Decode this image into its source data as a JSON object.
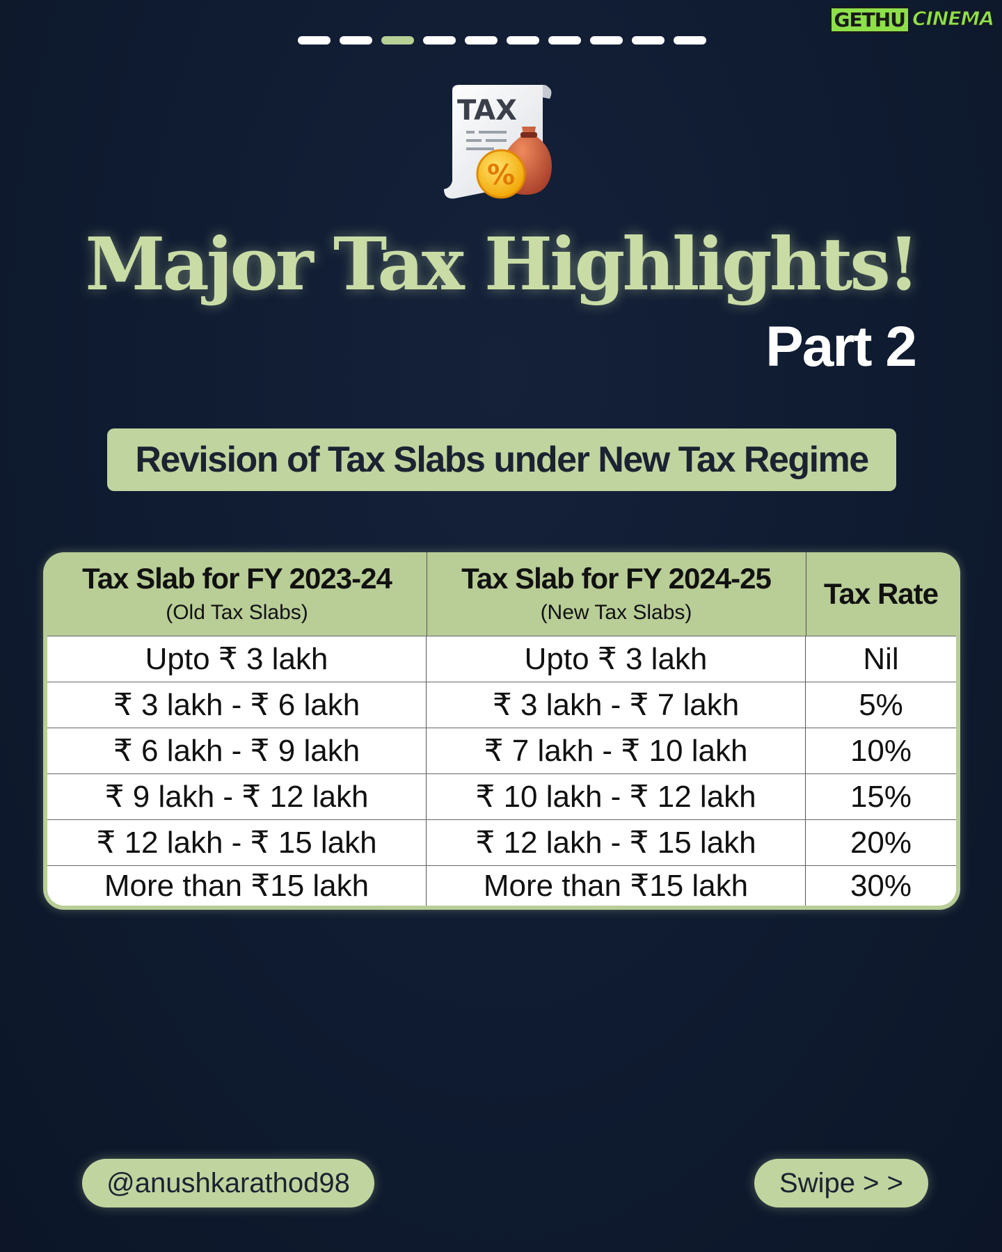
{
  "watermark": {
    "part1": "GETHU",
    "part2": "CINEMA"
  },
  "pagination": {
    "total": 10,
    "active_index": 2
  },
  "icon": {
    "name": "tax-receipt-icon",
    "label": "TAX",
    "badge": "%"
  },
  "title": "Major Tax Highlights!",
  "part": "Part 2",
  "subheading": "Revision of Tax Slabs under New Tax Regime",
  "table": {
    "headers": [
      {
        "main": "Tax Slab for FY 2023-24",
        "sub": "(Old Tax Slabs)"
      },
      {
        "main": "Tax Slab for FY 2024-25",
        "sub": "(New Tax Slabs)"
      },
      {
        "main": "Tax Rate",
        "sub": ""
      }
    ],
    "rows": [
      [
        "Upto ₹ 3 lakh",
        "Upto ₹ 3 lakh",
        "Nil"
      ],
      [
        "₹ 3 lakh - ₹ 6 lakh",
        "₹ 3 lakh - ₹ 7 lakh",
        "5%"
      ],
      [
        "₹ 6 lakh - ₹ 9 lakh",
        "₹ 7 lakh - ₹ 10 lakh",
        "10%"
      ],
      [
        "₹ 9 lakh - ₹ 12 lakh",
        "₹ 10 lakh - ₹ 12 lakh",
        "15%"
      ],
      [
        "₹ 12 lakh - ₹ 15 lakh",
        "₹ 12 lakh - ₹ 15 lakh",
        "20%"
      ],
      [
        "More than ₹15 lakh",
        "More than ₹15 lakh",
        "30%"
      ]
    ]
  },
  "footer": {
    "handle": "@anushkarathod98",
    "swipe": "Swipe > >"
  },
  "colors": {
    "background": "#0f1b30",
    "accent": "#c0d49f",
    "title": "#c9dca6"
  }
}
